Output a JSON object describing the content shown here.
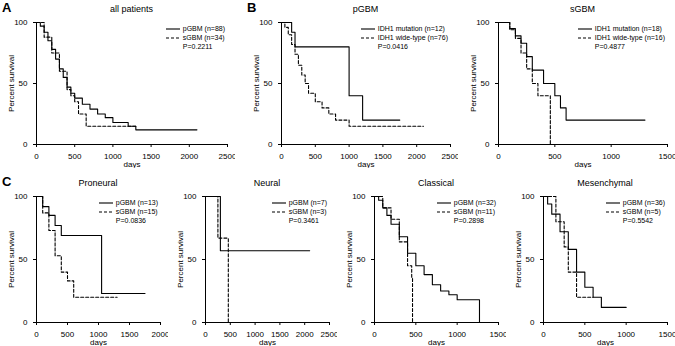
{
  "chart_data": [
    {
      "type": "line",
      "panel": "A",
      "title": "all patients",
      "x_label": "days",
      "y_label": "Percent survival",
      "xlim": [
        0,
        2500
      ],
      "xticks": [
        0,
        500,
        1000,
        1500,
        2000,
        2500
      ],
      "ylim": [
        0,
        100
      ],
      "yticks": [
        0,
        50,
        100
      ],
      "annotations": [
        "P=0.2211"
      ],
      "legend": "top-right",
      "series": [
        {
          "name": "pGBM (n=88)",
          "color": "#000000",
          "line_style": "solid",
          "x": [
            0,
            50,
            100,
            150,
            200,
            250,
            300,
            350,
            400,
            450,
            500,
            600,
            700,
            800,
            900,
            1000,
            1200,
            1300,
            2100
          ],
          "values": [
            100,
            97,
            92,
            85,
            78,
            70,
            62,
            55,
            47,
            42,
            38,
            33,
            29,
            25,
            22,
            18,
            15,
            12,
            12
          ]
        },
        {
          "name": "sGBM (n=34)",
          "color": "#000000",
          "line_style": "dashed",
          "x": [
            0,
            100,
            200,
            300,
            400,
            450,
            500,
            550,
            650,
            1300
          ],
          "values": [
            100,
            88,
            75,
            60,
            45,
            40,
            35,
            25,
            15,
            15
          ]
        }
      ]
    },
    {
      "type": "line",
      "panel": "B",
      "title": "pGBM",
      "x_label": "days",
      "y_label": "Percent survival",
      "xlim": [
        0,
        2500
      ],
      "xticks": [
        0,
        500,
        1000,
        1500,
        2000,
        2500
      ],
      "ylim": [
        0,
        100
      ],
      "yticks": [
        0,
        50,
        100
      ],
      "annotations": [
        "P=0.0416"
      ],
      "legend": "top-right",
      "series": [
        {
          "name": "IDH1 mutation (n=12)",
          "color": "#000000",
          "line_style": "solid",
          "x": [
            0,
            150,
            200,
            950,
            1000,
            1200,
            1750
          ],
          "values": [
            100,
            92,
            80,
            80,
            40,
            20,
            20
          ]
        },
        {
          "name": "IDH1 wide-type (n=76)",
          "color": "#000000",
          "line_style": "dashed",
          "x": [
            0,
            50,
            100,
            150,
            200,
            250,
            300,
            350,
            400,
            500,
            600,
            700,
            800,
            1000,
            2100
          ],
          "values": [
            100,
            96,
            90,
            82,
            74,
            65,
            57,
            50,
            42,
            35,
            30,
            25,
            20,
            15,
            15
          ]
        }
      ]
    },
    {
      "type": "line",
      "title": "sGBM",
      "x_label": "days",
      "y_label": "Percent survival",
      "xlim": [
        0,
        1500
      ],
      "xticks": [
        0,
        500,
        1000,
        1500
      ],
      "ylim": [
        0,
        100
      ],
      "yticks": [
        0,
        50,
        100
      ],
      "annotations": [
        "P=0.4877"
      ],
      "legend": "top-right",
      "series": [
        {
          "name": "IDH1 mutation (n=18)",
          "color": "#000000",
          "line_style": "solid",
          "x": [
            0,
            100,
            150,
            200,
            250,
            300,
            400,
            500,
            550,
            600,
            1300
          ],
          "values": [
            100,
            95,
            89,
            83,
            72,
            61,
            50,
            40,
            30,
            20,
            20
          ]
        },
        {
          "name": "IDH1 wide-type (n=16)",
          "color": "#000000",
          "line_style": "dashed",
          "x": [
            0,
            100,
            150,
            200,
            250,
            300,
            350,
            460
          ],
          "values": [
            100,
            94,
            87,
            75,
            62,
            50,
            40,
            0
          ]
        }
      ]
    },
    {
      "type": "line",
      "panel": "C",
      "title": "Proneural",
      "x_label": "days",
      "y_label": "Percent survival",
      "xlim": [
        0,
        2000
      ],
      "xticks": [
        0,
        500,
        1000,
        1500,
        2000
      ],
      "ylim": [
        0,
        100
      ],
      "yticks": [
        0,
        50,
        100
      ],
      "annotations": [
        "P=0.0836"
      ],
      "legend": "top-right",
      "series": [
        {
          "name": "pGBM (n=13)",
          "color": "#000000",
          "line_style": "solid",
          "x": [
            0,
            100,
            200,
            300,
            400,
            1000,
            1050,
            1750
          ],
          "values": [
            100,
            92,
            85,
            77,
            69,
            69,
            23,
            23
          ]
        },
        {
          "name": "sGBM (n=15)",
          "color": "#000000",
          "line_style": "dashed",
          "x": [
            0,
            100,
            200,
            300,
            400,
            500,
            600,
            1300
          ],
          "values": [
            100,
            87,
            73,
            53,
            40,
            33,
            20,
            20
          ]
        }
      ]
    },
    {
      "type": "line",
      "title": "Neural",
      "x_label": "days",
      "y_label": "Percent survival",
      "xlim": [
        0,
        2500
      ],
      "xticks": [
        0,
        500,
        1000,
        1500,
        2000,
        2500
      ],
      "ylim": [
        0,
        100
      ],
      "yticks": [
        0,
        50,
        100
      ],
      "annotations": [
        "P=0.3461"
      ],
      "legend": "top-right",
      "series": [
        {
          "name": "pGBM (n=7)",
          "color": "#000000",
          "line_style": "solid",
          "x": [
            0,
            250,
            300,
            2100
          ],
          "values": [
            100,
            100,
            57,
            57
          ]
        },
        {
          "name": "sGBM (n=3)",
          "color": "#000000",
          "line_style": "dashed",
          "x": [
            0,
            200,
            250,
            450,
            460
          ],
          "values": [
            100,
            100,
            67,
            67,
            0
          ]
        }
      ]
    },
    {
      "type": "line",
      "title": "Classical",
      "x_label": "days",
      "y_label": "Percent survival",
      "xlim": [
        0,
        1500
      ],
      "xticks": [
        0,
        500,
        1000,
        1500
      ],
      "ylim": [
        0,
        100
      ],
      "yticks": [
        0,
        50,
        100
      ],
      "annotations": [
        "P=0.2898"
      ],
      "legend": "top-right",
      "series": [
        {
          "name": "pGBM (n=32)",
          "color": "#000000",
          "line_style": "solid",
          "x": [
            0,
            50,
            100,
            150,
            200,
            300,
            400,
            500,
            600,
            700,
            800,
            900,
            1000,
            1250,
            1270
          ],
          "values": [
            100,
            97,
            91,
            85,
            78,
            68,
            55,
            45,
            38,
            30,
            25,
            22,
            18,
            18,
            0
          ]
        },
        {
          "name": "sGBM (n=11)",
          "color": "#000000",
          "line_style": "dashed",
          "x": [
            0,
            100,
            200,
            300,
            400,
            450,
            460
          ],
          "values": [
            100,
            91,
            82,
            64,
            45,
            36,
            0
          ]
        }
      ]
    },
    {
      "type": "line",
      "title": "Mesenchymal",
      "x_label": "days",
      "y_label": "Percent survival",
      "xlim": [
        0,
        1500
      ],
      "xticks": [
        0,
        500,
        1000,
        1500
      ],
      "ylim": [
        0,
        100
      ],
      "yticks": [
        0,
        50,
        100
      ],
      "annotations": [
        "P=0.5542"
      ],
      "legend": "top-right",
      "series": [
        {
          "name": "pGBM (n=36)",
          "color": "#000000",
          "line_style": "solid",
          "x": [
            0,
            50,
            100,
            200,
            300,
            400,
            500,
            600,
            700,
            1000
          ],
          "values": [
            100,
            94,
            86,
            72,
            58,
            40,
            28,
            20,
            12,
            12
          ]
        },
        {
          "name": "sGBM (n=5)",
          "color": "#000000",
          "line_style": "dashed",
          "x": [
            0,
            150,
            250,
            300,
            400,
            600
          ],
          "values": [
            100,
            80,
            60,
            40,
            20,
            20
          ]
        }
      ]
    }
  ]
}
